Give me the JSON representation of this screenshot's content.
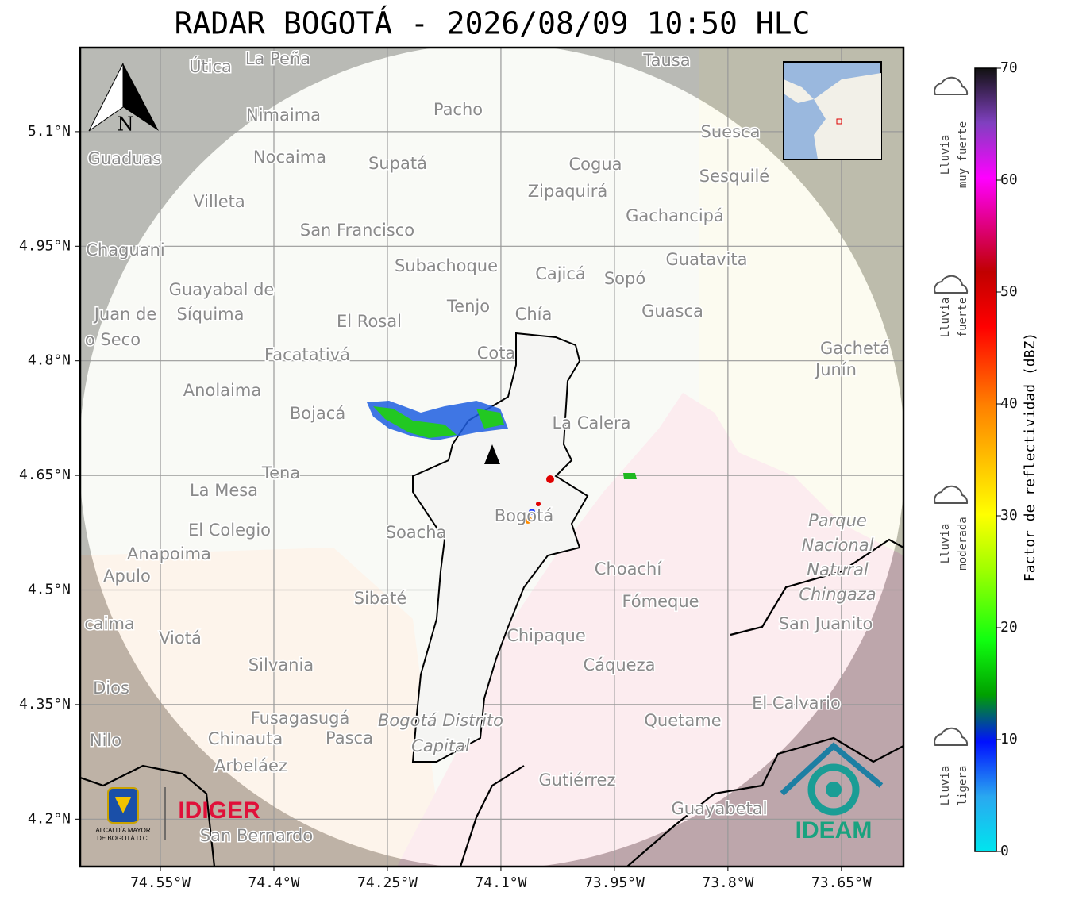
{
  "title": "RADAR BOGOTÁ - 2026/08/09 10:50 HLC",
  "map": {
    "xlim": [
      -74.656,
      -73.568
    ],
    "ylim": [
      4.138,
      5.21
    ],
    "xticks": [
      {
        "value": -74.55,
        "label": "74.55°W"
      },
      {
        "value": -74.4,
        "label": "74.4°W"
      },
      {
        "value": -74.25,
        "label": "74.25°W"
      },
      {
        "value": -74.1,
        "label": "74.1°W"
      },
      {
        "value": -73.95,
        "label": "73.95°W"
      },
      {
        "value": -73.8,
        "label": "73.8°W"
      },
      {
        "value": -73.65,
        "label": "73.65°W"
      }
    ],
    "yticks": [
      {
        "value": 5.1,
        "label": "5.1°N"
      },
      {
        "value": 4.95,
        "label": "4.95°N"
      },
      {
        "value": 4.8,
        "label": "4.8°N"
      },
      {
        "value": 4.65,
        "label": "4.65°N"
      },
      {
        "value": 4.5,
        "label": "4.5°N"
      },
      {
        "value": 4.35,
        "label": "4.35°N"
      },
      {
        "value": 4.2,
        "label": "4.2°N"
      }
    ],
    "north": "N",
    "places": [
      "Útica",
      "La Peña",
      "Tausa",
      "Pacho",
      "Nimaima",
      "Guaduas",
      "Nocaima",
      "Supatá",
      "Cogua",
      "Suesca",
      "Sesquilé",
      "Villeta",
      "Zipaquirá",
      "Gachancipá",
      "San Francisco",
      "Chaguani",
      "Guatavita",
      "Subachoque",
      "Cajicá",
      "Sopó",
      "Guayabal de",
      "Síquima",
      "Tenjo",
      "Chía",
      "Guasca",
      "Juan de",
      "o Seco",
      "El Rosal",
      "Facatativá",
      "Cota",
      "Gachetá",
      "Junín",
      "Anolaima",
      "Bojacá",
      "La Calera",
      "Tena",
      "La Mesa",
      "Bogotá",
      "El Colegio",
      "Soacha",
      "Anapoima",
      "Apulo",
      "Choachí",
      "Sibaté",
      "Fómeque",
      "San Juanito",
      "caima",
      "Viotá",
      "Chipaque",
      "Silvania",
      "Cáqueza",
      "Dios",
      "El Calvario",
      "Fusagasugá",
      "Quetame",
      "Nilo",
      "Chinauta",
      "Pasca",
      "Arbeláez",
      "Gutiérrez",
      "Guayabetal",
      "San Bernardo"
    ],
    "park": [
      "Parque",
      "Nacional",
      "Natural",
      "Chingaza"
    ],
    "district": [
      "Bogotá Distrito",
      "Capital"
    ]
  },
  "logos": {
    "alcaldia": [
      "ALCALDÍA MAYOR",
      "DE BOGOTÁ D.C."
    ],
    "idiger": "IDIGER",
    "ideam": "IDEAM"
  },
  "colorbar": {
    "label": "Factor de reflectividad (dBZ)",
    "lim": [
      0,
      70
    ],
    "ticks": [
      0,
      10,
      20,
      30,
      40,
      50,
      60,
      70
    ],
    "categories": [
      [
        "Lluvia",
        "muy fuerte"
      ],
      [
        "Lluvia",
        "fuerte"
      ],
      [
        "Lluvia",
        "moderada"
      ],
      [
        "Lluvia",
        "ligera"
      ]
    ]
  }
}
